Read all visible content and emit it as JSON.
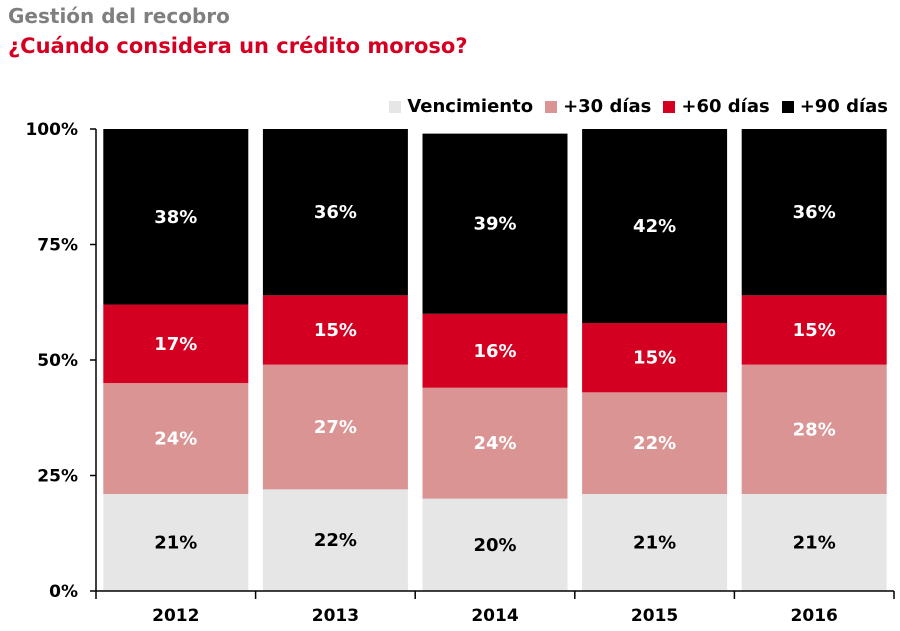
{
  "header": {
    "title": "Gestión del recobro",
    "subtitle": "¿Cuándo considera un crédito moroso?"
  },
  "chart_data": {
    "type": "bar",
    "stacked": true,
    "categories": [
      "2012",
      "2013",
      "2014",
      "2015",
      "2016"
    ],
    "series": [
      {
        "name": "Vencimiento",
        "color": "#e6e6e6",
        "label_color": "#000000",
        "values": [
          21,
          22,
          20,
          21,
          21
        ],
        "labels": [
          "21%",
          "22%",
          "20%",
          "21%",
          "21%"
        ]
      },
      {
        "name": "+30 días",
        "color": "#d99493",
        "label_color": "#ffffff",
        "values": [
          24,
          27,
          24,
          22,
          28
        ],
        "labels": [
          "24%",
          "27%",
          "24%",
          "22%",
          "28%"
        ]
      },
      {
        "name": "+60 días",
        "color": "#d40022",
        "label_color": "#ffffff",
        "values": [
          17,
          15,
          16,
          15,
          15
        ],
        "labels": [
          "17%",
          "15%",
          "16%",
          "15%",
          "15%"
        ]
      },
      {
        "name": "+90 días",
        "color": "#000000",
        "label_color": "#ffffff",
        "values": [
          38,
          36,
          39,
          42,
          36
        ],
        "labels": [
          "38%",
          "36%",
          "39%",
          "42%",
          "36%"
        ]
      }
    ],
    "yticks": [
      "0%",
      "25%",
      "50%",
      "75%",
      "100%"
    ],
    "ylim": [
      0,
      100
    ],
    "legend_position": "top-right",
    "grid": false
  }
}
